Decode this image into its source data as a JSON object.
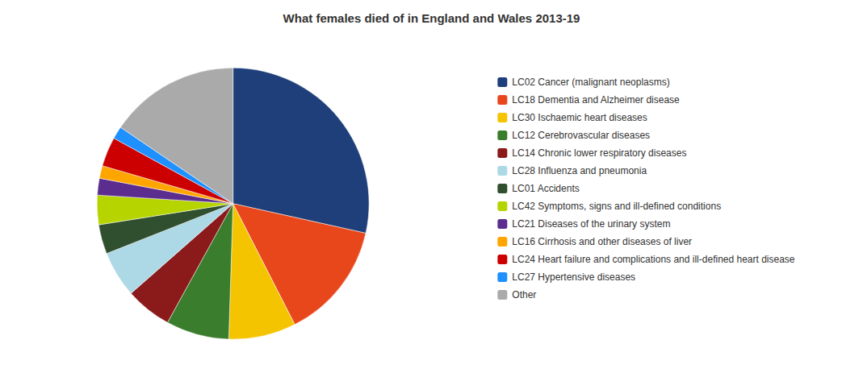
{
  "chart_data": {
    "type": "pie",
    "title": "What females died of in England and Wales 2013-19",
    "categories": [
      "LC02 Cancer (malignant neoplasms)",
      "LC18 Dementia and Alzheimer disease",
      "LC30 Ischaemic heart diseases",
      "LC12 Cerebrovascular diseases",
      "LC14 Chronic lower respiratory diseases",
      "LC28 Influenza and pneumonia",
      "LC01 Accidents",
      "LC42 Symptoms, signs and ill-defined conditions",
      "LC21 Diseases of the urinary system",
      "LC16 Cirrhosis and other diseases of liver",
      "LC24 Heart failure and complications and ill-defined heart disease",
      "LC27 Hypertensive diseases",
      "Other"
    ],
    "values": [
      28.5,
      14.0,
      8.0,
      7.5,
      5.5,
      5.5,
      3.5,
      3.5,
      2.0,
      1.5,
      3.5,
      1.5,
      15.5
    ],
    "colors": [
      "#1F3F7A",
      "#E8471C",
      "#F5C400",
      "#3A7D2C",
      "#8B1A1A",
      "#ADD8E6",
      "#2F4F2F",
      "#B5D400",
      "#5B2D8E",
      "#FFA500",
      "#CC0000",
      "#1E90FF",
      "#AAAAAA"
    ],
    "legend": "right"
  }
}
